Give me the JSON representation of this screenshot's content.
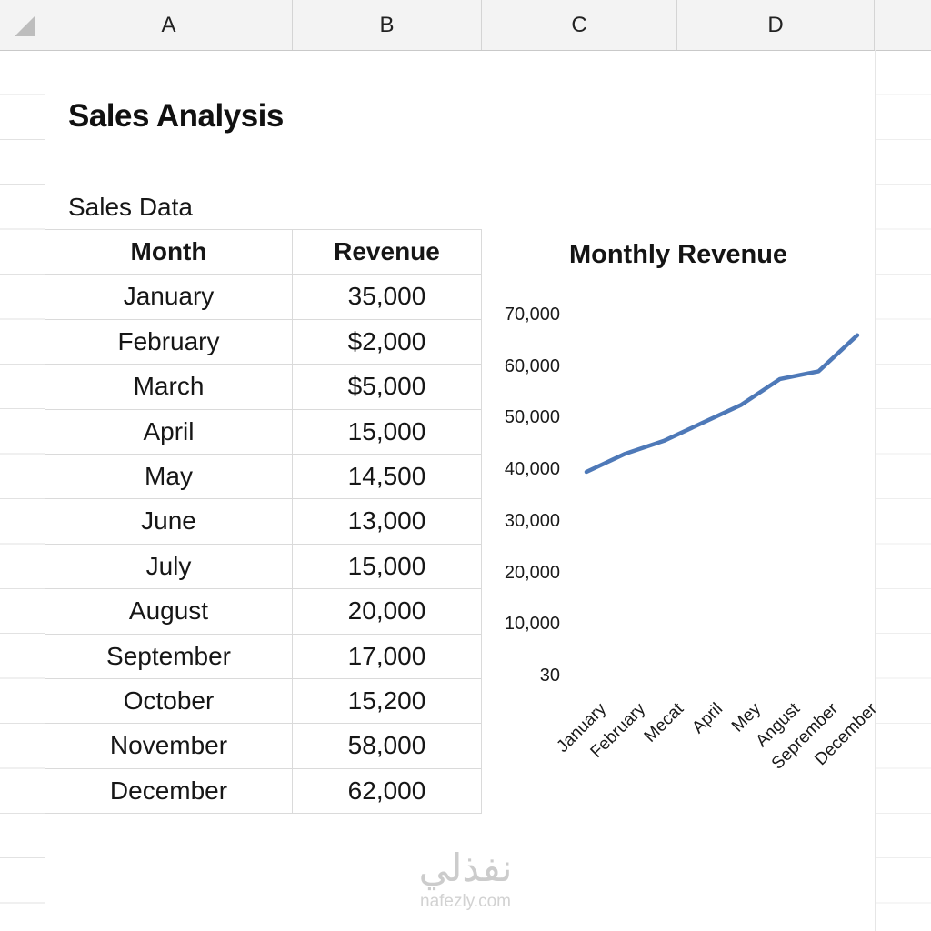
{
  "columns": [
    "A",
    "B",
    "C",
    "D"
  ],
  "sheet": {
    "title": "Sales Analysis",
    "section_label": "Sales Data",
    "table": {
      "headers": [
        "Month",
        "Revenue"
      ],
      "rows": [
        {
          "month": "January",
          "revenue": "35,000"
        },
        {
          "month": "February",
          "revenue": "$2,000"
        },
        {
          "month": "March",
          "revenue": "$5,000"
        },
        {
          "month": "April",
          "revenue": "15,000"
        },
        {
          "month": "May",
          "revenue": "14,500"
        },
        {
          "month": "June",
          "revenue": "13,000"
        },
        {
          "month": "July",
          "revenue": "15,000"
        },
        {
          "month": "August",
          "revenue": "20,000"
        },
        {
          "month": "September",
          "revenue": "17,000"
        },
        {
          "month": "October",
          "revenue": "15,200"
        },
        {
          "month": "November",
          "revenue": "58,000"
        },
        {
          "month": "December",
          "revenue": "62,000"
        }
      ]
    }
  },
  "chart_data": {
    "type": "line",
    "title": "Monthly Revenue",
    "x_labels": [
      "January",
      "February",
      "Mecat",
      "April",
      "Mey",
      "Angust",
      "Seprember",
      "December"
    ],
    "y_tick_labels": [
      "70,000",
      "60,000",
      "50,000",
      "40,000",
      "30,000",
      "20,000",
      "10,000",
      "30"
    ],
    "values": [
      39500,
      43000,
      45500,
      49000,
      52500,
      57500,
      59000,
      66000
    ],
    "ylim": [
      0,
      70000
    ],
    "line_color": "#4e79b8",
    "grid": "off",
    "legend": "none"
  },
  "watermark": {
    "main": "نفذلي",
    "sub": "nafezly.com"
  }
}
